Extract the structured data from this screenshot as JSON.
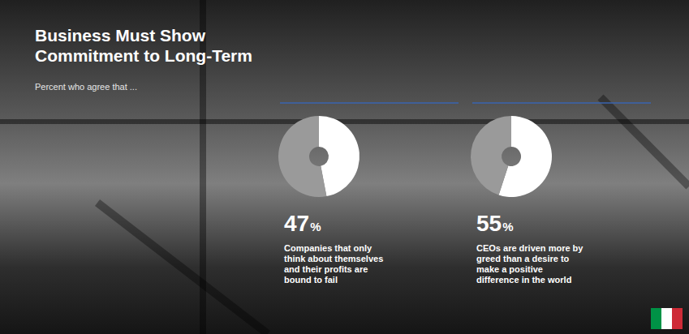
{
  "title": "Business Must Show Commitment to Long-Term",
  "subtitle": "Percent who agree that ...",
  "chart_data": [
    {
      "type": "pie",
      "values": [
        47,
        53
      ],
      "value_labels": [
        "47%",
        null
      ],
      "colors": [
        "#ffffff",
        "#9a9a9a"
      ],
      "caption": "Companies that only think about themselves and their profits are bound to fail"
    },
    {
      "type": "pie",
      "values": [
        55,
        45
      ],
      "value_labels": [
        "55%",
        null
      ],
      "colors": [
        "#ffffff",
        "#9a9a9a"
      ],
      "caption": "CEOs are driven more by greed than a desire to make a positive difference in the world"
    }
  ]
}
